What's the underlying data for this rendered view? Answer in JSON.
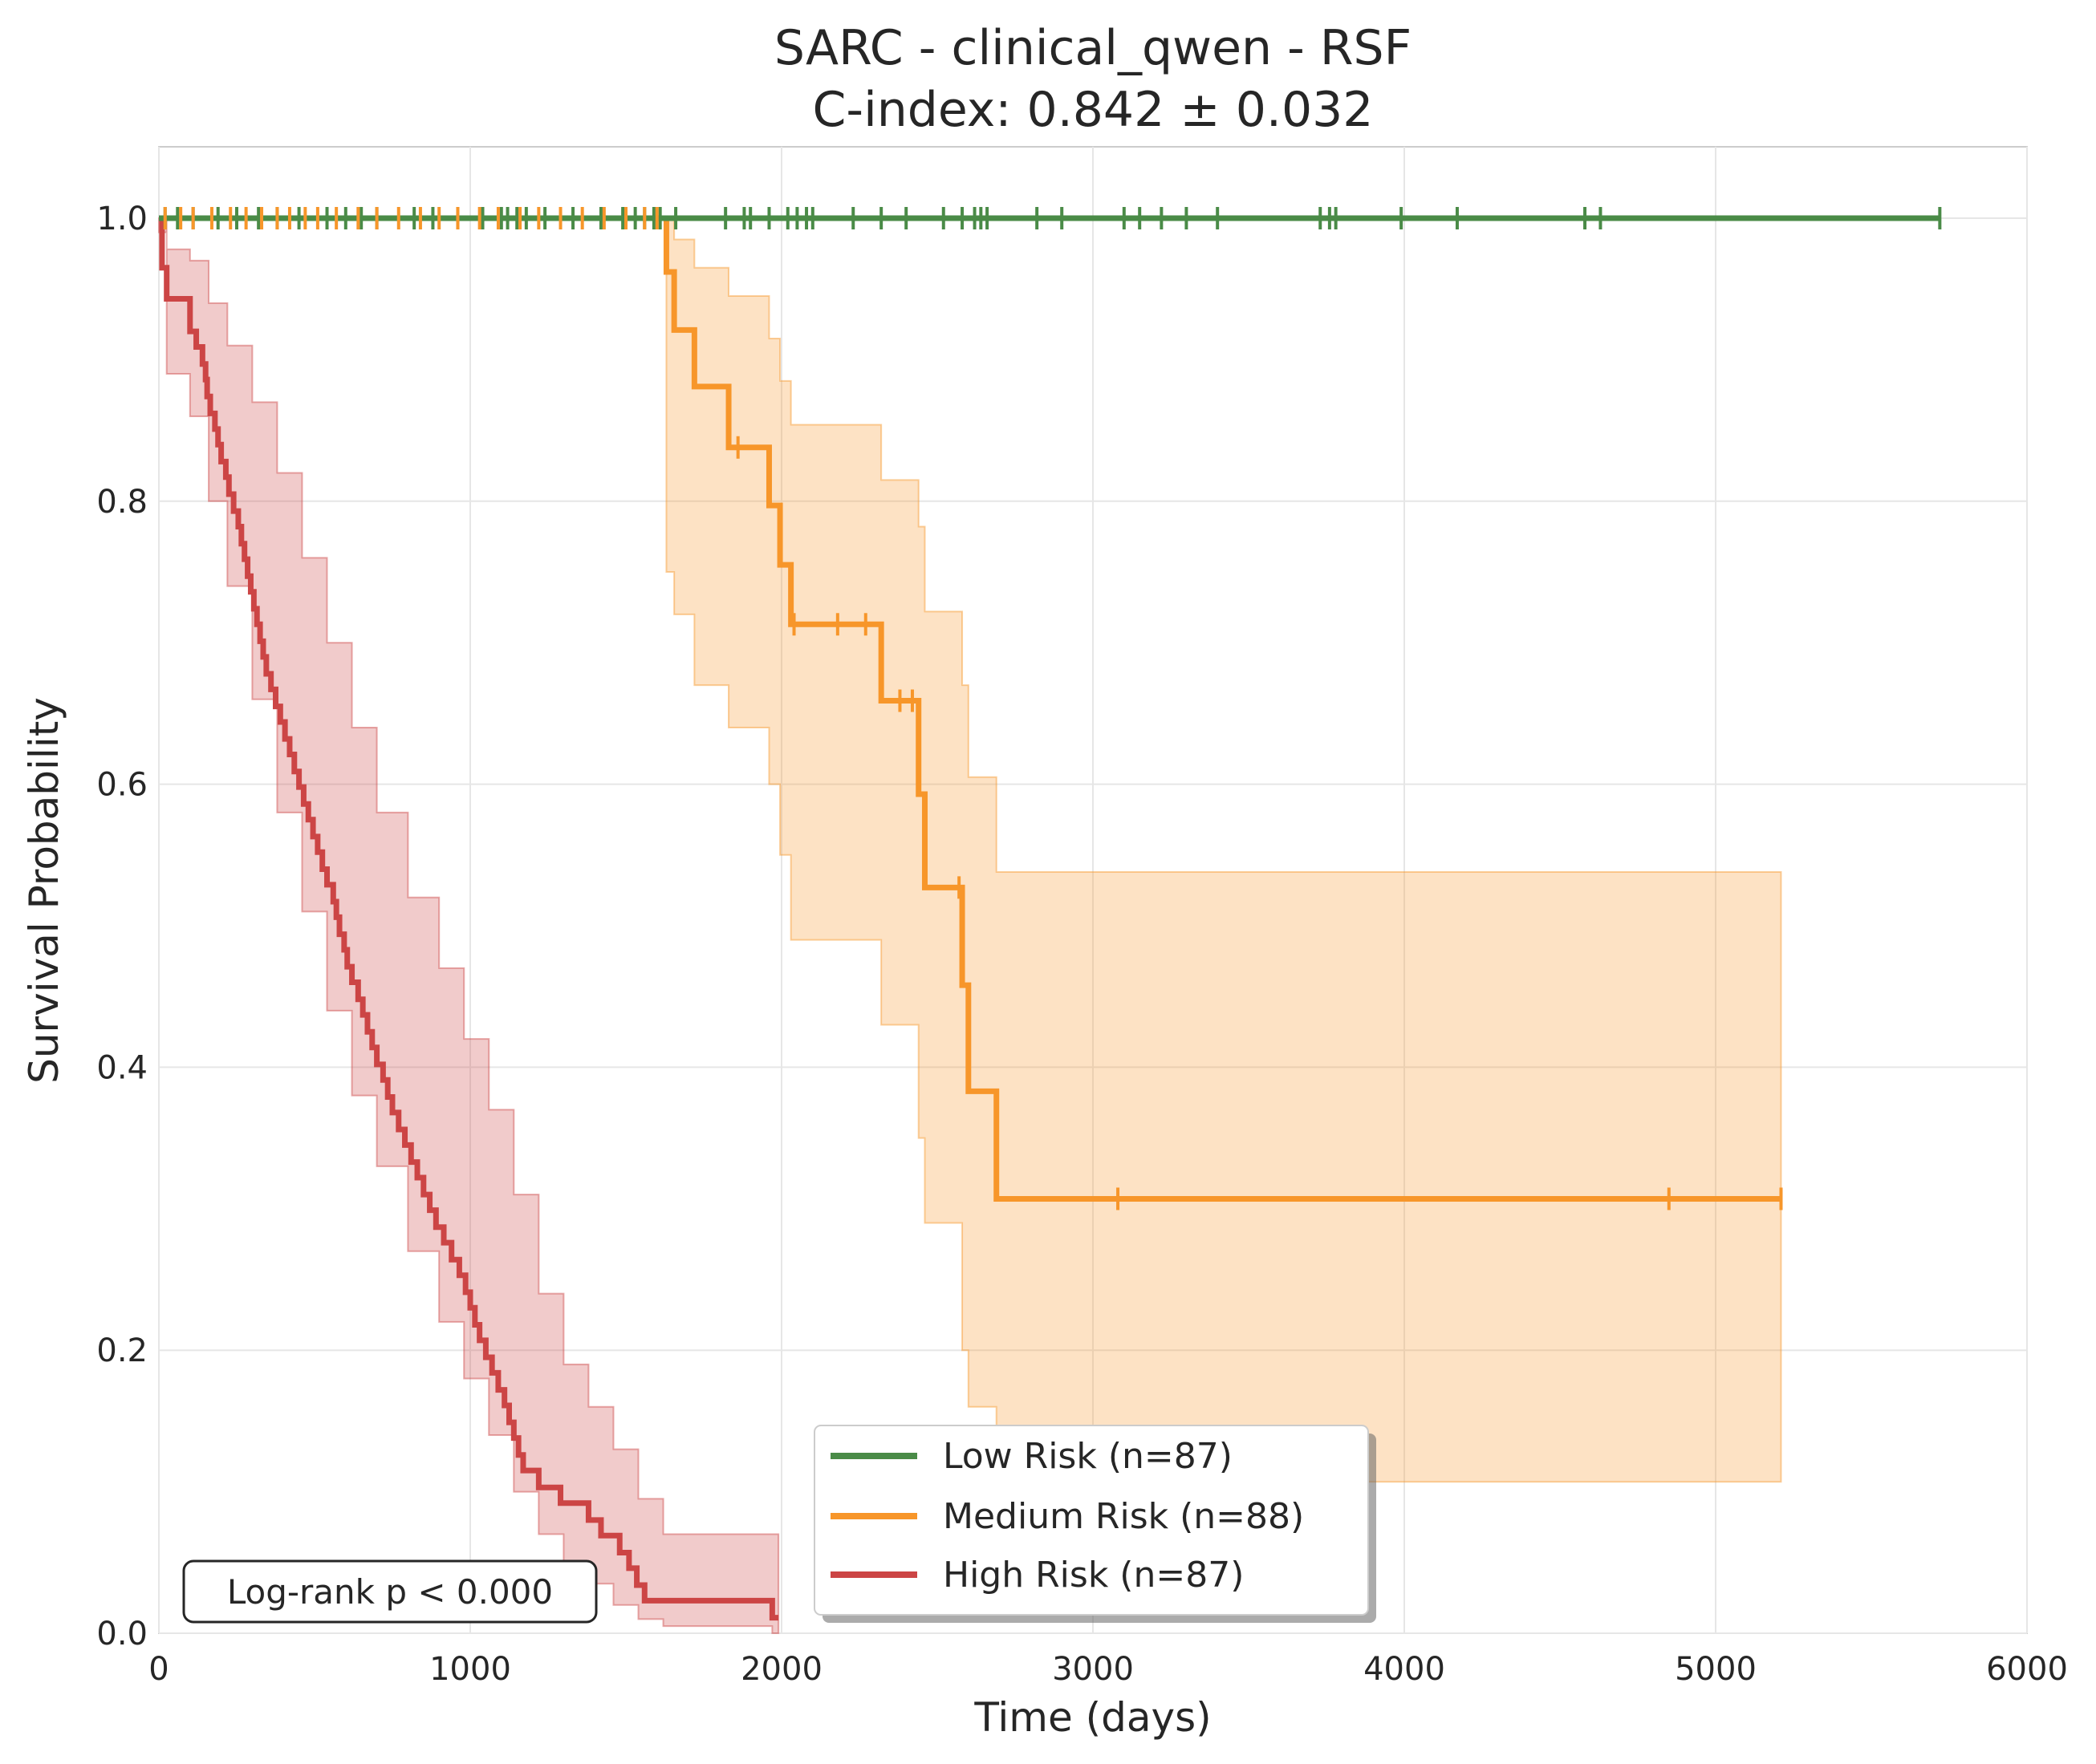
{
  "chart_data": {
    "type": "line",
    "subtype": "kaplan-meier",
    "title": "SARC - clinical_qwen - RSF",
    "subtitle": "C-index: 0.842 ± 0.032",
    "xlabel": "Time (days)",
    "ylabel": "Survival Probability",
    "xlim": [
      0,
      6000
    ],
    "ylim": [
      0,
      1.05
    ],
    "xticks": [
      0,
      1000,
      2000,
      3000,
      4000,
      5000,
      6000
    ],
    "yticks": [
      0.0,
      0.2,
      0.4,
      0.6,
      0.8,
      1.0
    ],
    "xtick_labels": [
      "0",
      "1000",
      "2000",
      "3000",
      "4000",
      "5000",
      "6000"
    ],
    "ytick_labels": [
      "0.0",
      "0.2",
      "0.4",
      "0.6",
      "0.8",
      "1.0"
    ],
    "grid": true,
    "legend_position": "bottom-center",
    "annotation": "Log-rank p < 0.000",
    "series": [
      {
        "name": "Low Risk (n=87)",
        "color": "#4a8b47",
        "steps": [
          [
            0,
            1.0
          ],
          [
            5720,
            1.0
          ]
        ],
        "ci": [],
        "censor_x": [
          20,
          60,
          110,
          190,
          250,
          320,
          380,
          450,
          540,
          600,
          650,
          700,
          820,
          880,
          960,
          1040,
          1100,
          1120,
          1150,
          1180,
          1240,
          1330,
          1420,
          1490,
          1530,
          1560,
          1590,
          1610,
          1660,
          1820,
          1880,
          1900,
          1960,
          2020,
          2050,
          2080,
          2100,
          2230,
          2320,
          2400,
          2520,
          2580,
          2620,
          2640,
          2660,
          2820,
          2900,
          3100,
          3150,
          3220,
          3300,
          3400,
          3730,
          3760,
          3780,
          3990,
          4170,
          4580,
          4630,
          5720
        ]
      },
      {
        "name": "Medium Risk (n=88)",
        "color": "#f7962a",
        "steps": [
          [
            0,
            1.0
          ],
          [
            1630,
            1.0
          ],
          [
            1630,
            0.962
          ],
          [
            1655,
            0.962
          ],
          [
            1655,
            0.921
          ],
          [
            1720,
            0.921
          ],
          [
            1720,
            0.881
          ],
          [
            1830,
            0.881
          ],
          [
            1830,
            0.838
          ],
          [
            1960,
            0.838
          ],
          [
            1960,
            0.797
          ],
          [
            1995,
            0.797
          ],
          [
            1995,
            0.755
          ],
          [
            2030,
            0.755
          ],
          [
            2030,
            0.713
          ],
          [
            2320,
            0.713
          ],
          [
            2320,
            0.659
          ],
          [
            2440,
            0.659
          ],
          [
            2440,
            0.593
          ],
          [
            2460,
            0.593
          ],
          [
            2460,
            0.527
          ],
          [
            2580,
            0.527
          ],
          [
            2580,
            0.458
          ],
          [
            2600,
            0.458
          ],
          [
            2600,
            0.383
          ],
          [
            2690,
            0.383
          ],
          [
            2690,
            0.307
          ],
          [
            5210,
            0.307
          ]
        ],
        "ci": [
          [
            1630,
            1.0,
            0.75
          ],
          [
            1655,
            0.985,
            0.72
          ],
          [
            1720,
            0.965,
            0.67
          ],
          [
            1830,
            0.945,
            0.64
          ],
          [
            1960,
            0.915,
            0.6
          ],
          [
            1995,
            0.885,
            0.55
          ],
          [
            2030,
            0.854,
            0.49
          ],
          [
            2320,
            0.815,
            0.43
          ],
          [
            2440,
            0.782,
            0.35
          ],
          [
            2460,
            0.722,
            0.29
          ],
          [
            2580,
            0.67,
            0.2
          ],
          [
            2600,
            0.605,
            0.16
          ],
          [
            2690,
            0.538,
            0.107
          ],
          [
            5210,
            0.538,
            0.107
          ]
        ],
        "censor_x": [
          20,
          70,
          110,
          170,
          230,
          280,
          330,
          380,
          420,
          470,
          510,
          570,
          640,
          700,
          770,
          840,
          900,
          960,
          1030,
          1090,
          1160,
          1220,
          1290,
          1360,
          1430,
          1500,
          1560,
          1600,
          1860,
          2040,
          2180,
          2270,
          2380,
          2420,
          2570,
          3080,
          4850,
          5210
        ]
      },
      {
        "name": "High Risk (n=87)",
        "color": "#cc4545",
        "steps": [
          [
            0,
            1.0
          ],
          [
            10,
            0.965
          ],
          [
            25,
            0.943
          ],
          [
            90,
            0.943
          ],
          [
            100,
            0.92
          ],
          [
            120,
            0.909
          ],
          [
            140,
            0.897
          ],
          [
            150,
            0.886
          ],
          [
            155,
            0.874
          ],
          [
            165,
            0.862
          ],
          [
            180,
            0.851
          ],
          [
            190,
            0.84
          ],
          [
            200,
            0.828
          ],
          [
            215,
            0.817
          ],
          [
            225,
            0.805
          ],
          [
            240,
            0.793
          ],
          [
            255,
            0.782
          ],
          [
            265,
            0.77
          ],
          [
            275,
            0.759
          ],
          [
            285,
            0.747
          ],
          [
            295,
            0.736
          ],
          [
            305,
            0.724
          ],
          [
            315,
            0.713
          ],
          [
            325,
            0.701
          ],
          [
            335,
            0.69
          ],
          [
            345,
            0.678
          ],
          [
            360,
            0.667
          ],
          [
            375,
            0.655
          ],
          [
            390,
            0.644
          ],
          [
            405,
            0.632
          ],
          [
            420,
            0.621
          ],
          [
            435,
            0.609
          ],
          [
            450,
            0.598
          ],
          [
            465,
            0.586
          ],
          [
            480,
            0.575
          ],
          [
            495,
            0.563
          ],
          [
            510,
            0.552
          ],
          [
            525,
            0.54
          ],
          [
            540,
            0.529
          ],
          [
            560,
            0.517
          ],
          [
            570,
            0.506
          ],
          [
            580,
            0.494
          ],
          [
            595,
            0.483
          ],
          [
            605,
            0.471
          ],
          [
            620,
            0.46
          ],
          [
            640,
            0.448
          ],
          [
            655,
            0.437
          ],
          [
            670,
            0.425
          ],
          [
            685,
            0.414
          ],
          [
            700,
            0.402
          ],
          [
            720,
            0.391
          ],
          [
            735,
            0.379
          ],
          [
            750,
            0.368
          ],
          [
            770,
            0.356
          ],
          [
            790,
            0.345
          ],
          [
            810,
            0.333
          ],
          [
            830,
            0.322
          ],
          [
            850,
            0.31
          ],
          [
            870,
            0.299
          ],
          [
            890,
            0.287
          ],
          [
            915,
            0.276
          ],
          [
            940,
            0.264
          ],
          [
            965,
            0.253
          ],
          [
            985,
            0.241
          ],
          [
            1000,
            0.23
          ],
          [
            1015,
            0.218
          ],
          [
            1030,
            0.207
          ],
          [
            1050,
            0.195
          ],
          [
            1070,
            0.184
          ],
          [
            1090,
            0.172
          ],
          [
            1110,
            0.161
          ],
          [
            1125,
            0.149
          ],
          [
            1140,
            0.138
          ],
          [
            1155,
            0.126
          ],
          [
            1170,
            0.115
          ],
          [
            1220,
            0.103
          ],
          [
            1290,
            0.092
          ],
          [
            1380,
            0.08
          ],
          [
            1420,
            0.069
          ],
          [
            1480,
            0.057
          ],
          [
            1510,
            0.046
          ],
          [
            1535,
            0.034
          ],
          [
            1560,
            0.023
          ],
          [
            1970,
            0.023
          ],
          [
            1970,
            0.011
          ],
          [
            1990,
            0.011
          ]
        ],
        "ci": [
          [
            0,
            1.0,
            0.99
          ],
          [
            25,
            0.978,
            0.89
          ],
          [
            100,
            0.97,
            0.86
          ],
          [
            160,
            0.94,
            0.8
          ],
          [
            220,
            0.91,
            0.74
          ],
          [
            300,
            0.87,
            0.66
          ],
          [
            380,
            0.82,
            0.58
          ],
          [
            460,
            0.76,
            0.51
          ],
          [
            540,
            0.7,
            0.44
          ],
          [
            620,
            0.64,
            0.38
          ],
          [
            700,
            0.58,
            0.33
          ],
          [
            800,
            0.52,
            0.27
          ],
          [
            900,
            0.47,
            0.22
          ],
          [
            980,
            0.42,
            0.18
          ],
          [
            1060,
            0.37,
            0.14
          ],
          [
            1140,
            0.31,
            0.1
          ],
          [
            1220,
            0.24,
            0.07
          ],
          [
            1300,
            0.19,
            0.05
          ],
          [
            1380,
            0.16,
            0.035
          ],
          [
            1460,
            0.13,
            0.02
          ],
          [
            1540,
            0.095,
            0.01
          ],
          [
            1620,
            0.07,
            0.005
          ],
          [
            1700,
            0.07,
            0.005
          ],
          [
            1970,
            0.07,
            0.0
          ],
          [
            1990,
            0.07,
            0.0
          ]
        ],
        "censor_x": []
      }
    ]
  }
}
